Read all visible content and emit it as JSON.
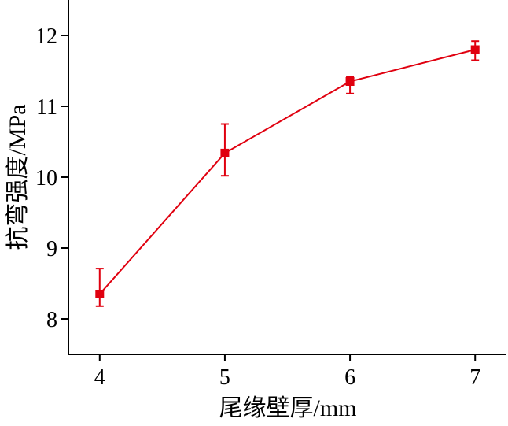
{
  "chart_data": {
    "type": "line",
    "title": "",
    "xlabel": "尾缘壁厚/mm",
    "ylabel": "抗弯强度/MPa",
    "x_ticks": [
      4,
      5,
      6,
      7
    ],
    "y_ticks": [
      8,
      9,
      10,
      11,
      12
    ],
    "xlim": [
      3.75,
      7.25
    ],
    "ylim": [
      7.5,
      12.5
    ],
    "grid": false,
    "series": [
      {
        "color": "#e0000f",
        "marker": "square",
        "points": [
          {
            "x": 4,
            "y": 8.35,
            "err_low": 8.18,
            "err_high": 8.71
          },
          {
            "x": 5,
            "y": 10.34,
            "err_low": 10.02,
            "err_high": 10.75
          },
          {
            "x": 6,
            "y": 11.35,
            "err_low": 11.18,
            "err_high": 11.42
          },
          {
            "x": 7,
            "y": 11.8,
            "err_low": 11.65,
            "err_high": 11.92
          }
        ]
      }
    ]
  }
}
